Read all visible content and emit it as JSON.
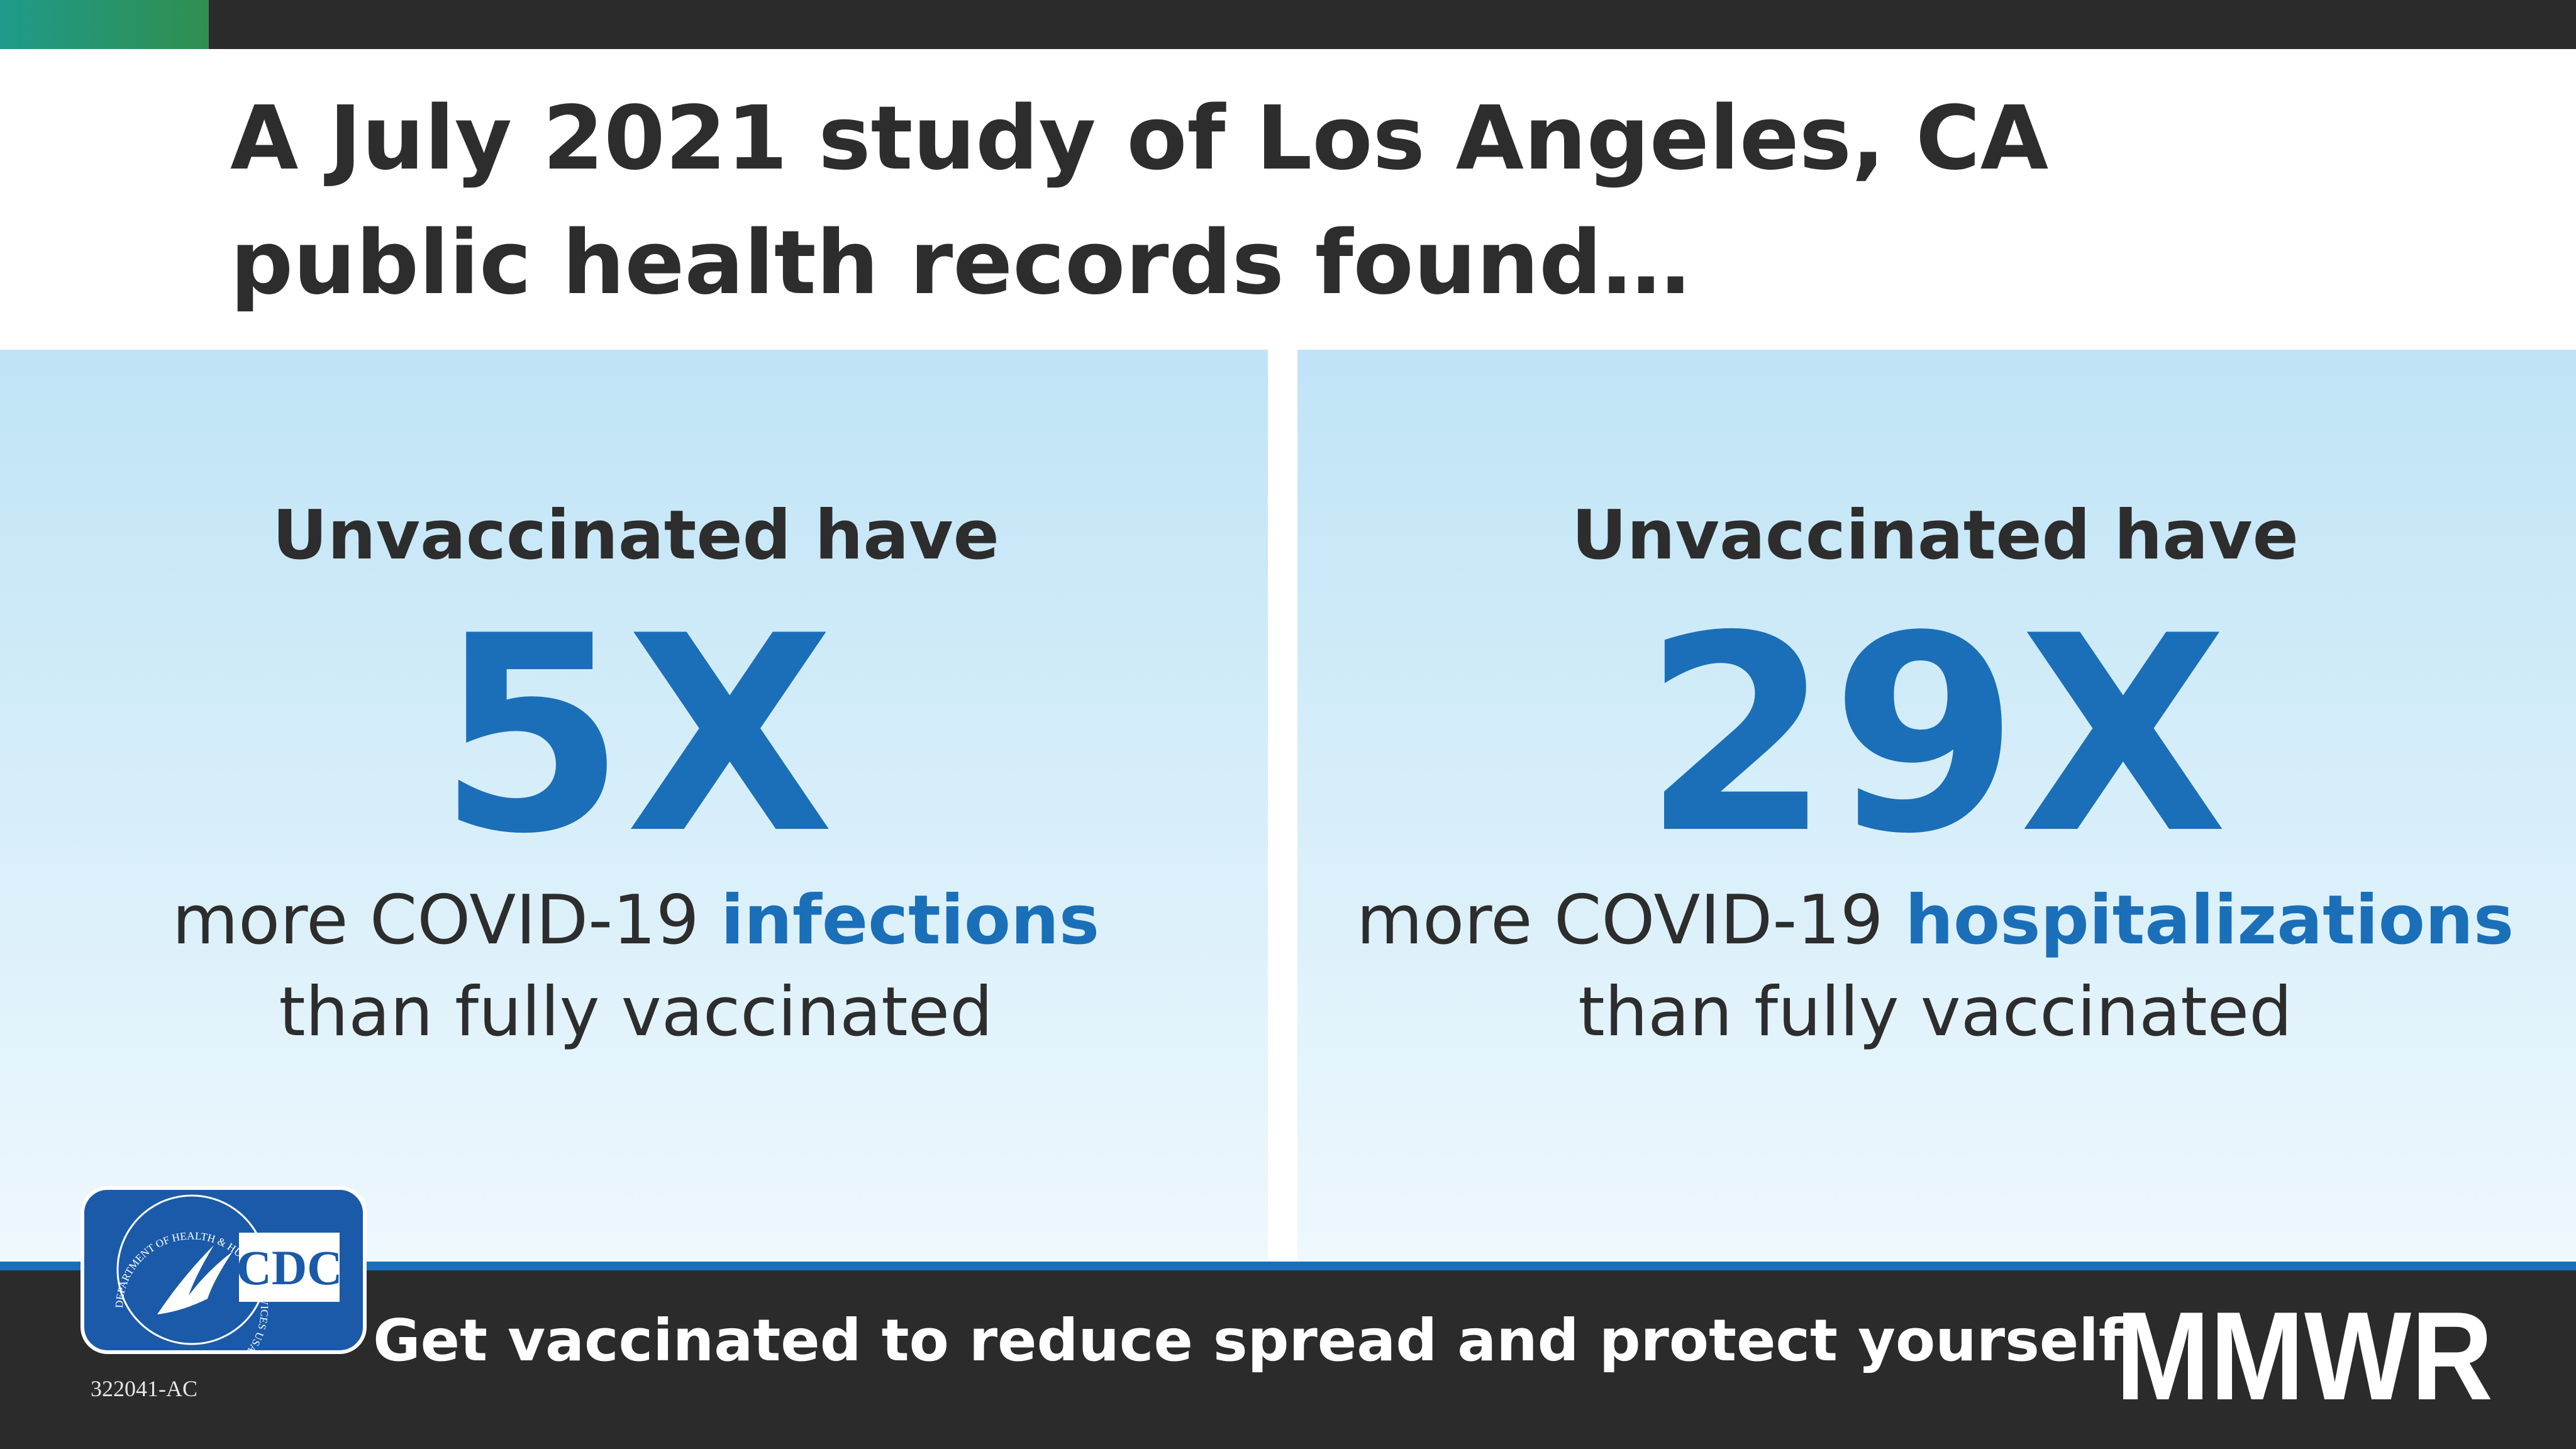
{
  "header": {
    "title_lines": [
      "A July 2021 study of Los Angeles, CA",
      "public health records found…"
    ]
  },
  "panels": [
    {
      "lead": "Unvaccinated have",
      "figure": "5X",
      "text": "more COVID-19 ",
      "highlight": "infections",
      "tail": "than fully vaccinated"
    },
    {
      "lead": "Unvaccinated have",
      "figure": "29X",
      "text": "more COVID-19 ",
      "highlight": "hospitalizations",
      "tail": "than fully vaccinated"
    }
  ],
  "logo": {
    "seal": "DEPARTMENT OF HEALTH & HUMAN SERVICES USA",
    "agency": "CDC"
  },
  "code": "322041-AC",
  "footer": {
    "message": "Get vaccinated to reduce spread and protect yourself",
    "brand": "MMWR"
  }
}
